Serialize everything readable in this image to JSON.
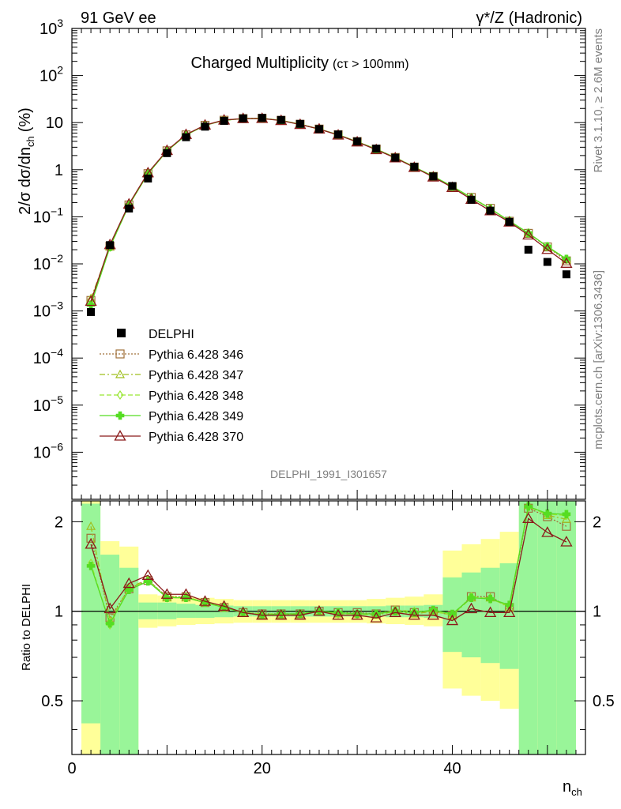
{
  "header": {
    "left": "91 GeV ee",
    "right": "γ*/Z (Hadronic)"
  },
  "side": {
    "rivet": "Rivet 3.1.10, ≥ 2.6M events",
    "mcplots": "mcplots.cern.ch [arXiv:1306.3436]"
  },
  "colors": {
    "data": "#000000",
    "p346": "#a0703a",
    "p347": "#9fbf1f",
    "p348": "#99e633",
    "p349": "#55dd22",
    "p370": "#8b1a1a",
    "band_inner": "#99f599",
    "band_outer": "#ffff99"
  },
  "chart_data": {
    "type": "scatter",
    "title": "Charged Multiplicity",
    "title_suffix": "(cτ > 100mm)",
    "analysis": "DELPHI_1991_I301657",
    "xlabel": "n",
    "xlabel_sub": "ch",
    "ylabel": "2/σ dσ/dn",
    "ylabel_sub": "ch",
    "ylabel_unit": "(%)",
    "ratio_ylabel": "Ratio to DELPHI",
    "xlim": [
      0,
      54
    ],
    "ylim": [
      1e-07,
      1000
    ],
    "yscale": "log",
    "ratio_ylim": [
      0.33,
      2.35
    ],
    "ratio_yscale": "log",
    "x_ticks": [
      "0",
      "20",
      "40"
    ],
    "ratio_ticks": [
      "0.5",
      "1",
      "2"
    ],
    "legend_position": "left",
    "x": [
      2,
      4,
      6,
      8,
      10,
      12,
      14,
      16,
      18,
      20,
      22,
      24,
      26,
      28,
      30,
      32,
      34,
      36,
      38,
      40,
      42,
      44,
      46,
      48,
      50,
      52
    ],
    "data": {
      "name": "DELPHI",
      "values": [
        0.00095,
        0.025,
        0.15,
        0.65,
        2.25,
        4.9,
        8.2,
        10.9,
        12.3,
        12.6,
        11.4,
        9.4,
        7.3,
        5.6,
        4.0,
        2.8,
        1.8,
        1.15,
        0.72,
        0.45,
        0.23,
        0.135,
        0.078,
        0.02,
        0.011,
        0.006
      ],
      "band_inner": [
        [
          0.42,
          2.3
        ],
        [
          0.33,
          1.55
        ],
        [
          0.33,
          1.4
        ],
        [
          0.94,
          1.07
        ],
        [
          0.94,
          1.07
        ],
        [
          0.95,
          1.06
        ],
        [
          0.95,
          1.05
        ],
        [
          0.955,
          1.045
        ],
        [
          0.96,
          1.04
        ],
        [
          0.96,
          1.04
        ],
        [
          0.96,
          1.04
        ],
        [
          0.96,
          1.04
        ],
        [
          0.96,
          1.04
        ],
        [
          0.96,
          1.04
        ],
        [
          0.96,
          1.04
        ],
        [
          0.96,
          1.04
        ],
        [
          0.955,
          1.045
        ],
        [
          0.955,
          1.045
        ],
        [
          0.95,
          1.05
        ],
        [
          0.73,
          1.3
        ],
        [
          0.7,
          1.35
        ],
        [
          0.67,
          1.4
        ],
        [
          0.64,
          1.45
        ],
        [
          0.33,
          2.35
        ],
        [
          0.33,
          2.35
        ],
        [
          0.33,
          2.35
        ]
      ],
      "band_outer": [
        [
          0.33,
          2.35
        ],
        [
          0.33,
          1.72
        ],
        [
          0.33,
          1.65
        ],
        [
          0.88,
          1.14
        ],
        [
          0.89,
          1.13
        ],
        [
          0.9,
          1.12
        ],
        [
          0.905,
          1.11
        ],
        [
          0.91,
          1.1
        ],
        [
          0.915,
          1.09
        ],
        [
          0.915,
          1.09
        ],
        [
          0.915,
          1.09
        ],
        [
          0.915,
          1.09
        ],
        [
          0.915,
          1.09
        ],
        [
          0.915,
          1.09
        ],
        [
          0.915,
          1.09
        ],
        [
          0.91,
          1.1
        ],
        [
          0.905,
          1.11
        ],
        [
          0.9,
          1.12
        ],
        [
          0.89,
          1.14
        ],
        [
          0.55,
          1.6
        ],
        [
          0.52,
          1.68
        ],
        [
          0.5,
          1.75
        ],
        [
          0.47,
          1.85
        ],
        [
          0.33,
          2.35
        ],
        [
          0.33,
          2.35
        ],
        [
          0.33,
          2.35
        ]
      ]
    },
    "series": [
      {
        "name": "Pythia 6.428 346",
        "color": "#a0703a",
        "marker": "square",
        "dash": "2,2",
        "ratio": [
          1.76,
          0.95,
          1.19,
          1.27,
          1.12,
          1.12,
          1.07,
          1.03,
          0.99,
          0.98,
          0.98,
          0.98,
          1.0,
          0.99,
          0.99,
          0.98,
          1.01,
          0.99,
          1.0,
          0.97,
          1.12,
          1.12,
          1.03,
          2.22,
          2.08,
          1.93
        ]
      },
      {
        "name": "Pythia 6.428 347",
        "color": "#9fbf1f",
        "marker": "triangle",
        "dash": "7,3,2,3",
        "ratio": [
          1.93,
          0.93,
          1.2,
          1.28,
          1.11,
          1.11,
          1.07,
          1.03,
          0.99,
          0.97,
          0.97,
          0.98,
          1.0,
          0.98,
          0.98,
          0.97,
          1.0,
          0.98,
          1.0,
          0.97,
          1.11,
          1.11,
          1.03,
          2.27,
          2.1,
          2.04
        ]
      },
      {
        "name": "Pythia 6.428 348",
        "color": "#99e633",
        "marker": "diamond",
        "dash": "6,3",
        "ratio": [
          1.45,
          0.9,
          1.19,
          1.27,
          1.11,
          1.12,
          1.07,
          1.03,
          0.99,
          0.98,
          0.98,
          0.98,
          1.0,
          0.98,
          0.98,
          0.98,
          1.01,
          1.0,
          1.0,
          0.97,
          1.12,
          1.1,
          1.04,
          2.24,
          2.12,
          2.1
        ]
      },
      {
        "name": "Pythia 6.428 349",
        "color": "#55dd22",
        "marker": "cross",
        "dash": "",
        "ratio": [
          1.42,
          0.91,
          1.18,
          1.26,
          1.11,
          1.11,
          1.07,
          1.03,
          0.99,
          0.97,
          0.98,
          0.98,
          1.0,
          0.99,
          0.98,
          0.98,
          1.0,
          0.99,
          1.01,
          0.98,
          1.11,
          1.1,
          1.05,
          2.25,
          2.13,
          2.12
        ]
      },
      {
        "name": "Pythia 6.428 370",
        "color": "#8b1a1a",
        "marker": "triangle-open",
        "dash": "",
        "ratio": [
          1.68,
          1.02,
          1.24,
          1.32,
          1.14,
          1.14,
          1.08,
          1.04,
          0.99,
          0.97,
          0.97,
          0.97,
          1.0,
          0.97,
          0.97,
          0.95,
          0.99,
          0.97,
          0.97,
          0.93,
          1.02,
          0.99,
          0.99,
          2.05,
          1.84,
          1.71
        ]
      }
    ]
  }
}
